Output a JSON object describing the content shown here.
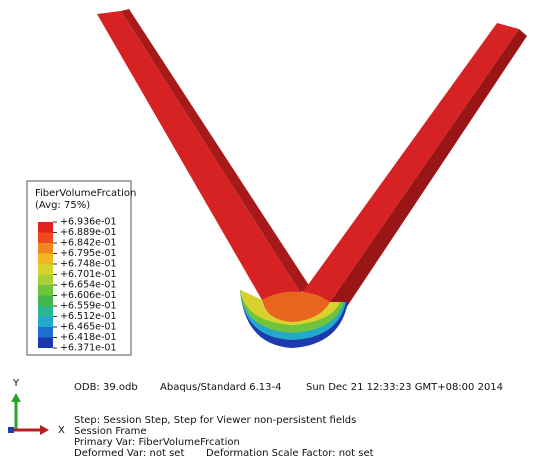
{
  "legend": {
    "title": "FiberVolumeFrcation",
    "subtitle": "(Avg: 75%)",
    "levels": [
      "+6.936e-01",
      "+6.889e-01",
      "+6.842e-01",
      "+6.795e-01",
      "+6.748e-01",
      "+6.701e-01",
      "+6.654e-01",
      "+6.606e-01",
      "+6.559e-01",
      "+6.512e-01",
      "+6.465e-01",
      "+6.418e-01",
      "+6.371e-01"
    ],
    "colors": [
      "#e3201c",
      "#ee4a1e",
      "#f4861f",
      "#f2b526",
      "#d9d12c",
      "#a9d035",
      "#6fc43c",
      "#3fb74a",
      "#2bb78e",
      "#24a9cc",
      "#1c6fcf",
      "#1c3aae"
    ]
  },
  "info": {
    "odb": "ODB: 39.odb",
    "solver": "Abaqus/Standard 6.13-4",
    "date": "Sun Dec 21 12:33:23 GMT+08:00 2014",
    "step": "Step: Session Step, Step for Viewer non-persistent fields",
    "frame": "Session Frame",
    "primary": "Primary Var: FiberVolumeFrcation",
    "deformed": "Deformed Var: not set",
    "scale": "Deformation Scale Factor: not set"
  },
  "triad": {
    "y": "Y",
    "x": "X"
  }
}
